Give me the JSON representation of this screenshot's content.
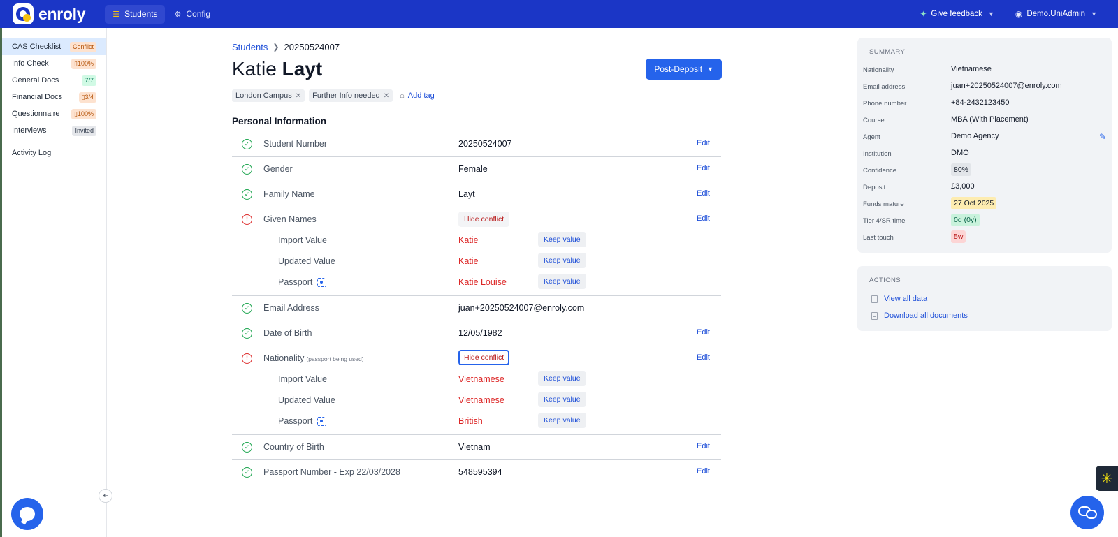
{
  "app": {
    "brand": "enroly",
    "nav": [
      {
        "label": "Students",
        "icon": "students-icon",
        "active": true
      },
      {
        "label": "Config",
        "icon": "gear-icon",
        "active": false
      }
    ],
    "feedback": "Give feedback",
    "user": "Demo.UniAdmin"
  },
  "sidebar": {
    "items": [
      {
        "label": "CAS Checklist",
        "badge": "Conflict"
      },
      {
        "label": "Info Check",
        "badge": "100%"
      },
      {
        "label": "General Docs",
        "badge": "7/7"
      },
      {
        "label": "Financial Docs",
        "badge": "3/4"
      },
      {
        "label": "Questionnaire",
        "badge": "100%"
      },
      {
        "label": "Interviews",
        "badge": "Invited"
      }
    ],
    "activity_log": "Activity Log"
  },
  "breadcrumb": {
    "parent": "Students",
    "current": "20250524007"
  },
  "student": {
    "first": "Katie",
    "last": "Layt"
  },
  "stage_button": "Post-Deposit",
  "tags": [
    "London Campus",
    "Further Info needed"
  ],
  "add_tag": "Add tag",
  "section_title": "Personal Information",
  "fields": {
    "student_number": {
      "label": "Student Number",
      "value": "20250524007",
      "edit": "Edit"
    },
    "gender": {
      "label": "Gender",
      "value": "Female",
      "edit": "Edit"
    },
    "family_name": {
      "label": "Family Name",
      "value": "Layt",
      "edit": "Edit"
    },
    "given_names": {
      "label": "Given Names",
      "button": "Hide conflict",
      "edit": "Edit",
      "sources": [
        {
          "label": "Import Value",
          "value": "Katie",
          "keep": "Keep value"
        },
        {
          "label": "Updated Value",
          "value": "Katie",
          "keep": "Keep value"
        },
        {
          "label": "Passport",
          "value": "Katie Louise",
          "keep": "Keep value"
        }
      ]
    },
    "email": {
      "label": "Email Address",
      "value": "juan+20250524007@enroly.com"
    },
    "dob": {
      "label": "Date of Birth",
      "value": "12/05/1982",
      "edit": "Edit"
    },
    "nationality": {
      "label": "Nationality",
      "note": "(passport being used)",
      "button": "Hide conflict",
      "edit": "Edit",
      "sources": [
        {
          "label": "Import Value",
          "value": "Vietnamese",
          "keep": "Keep value"
        },
        {
          "label": "Updated Value",
          "value": "Vietnamese",
          "keep": "Keep value"
        },
        {
          "label": "Passport",
          "value": "British",
          "keep": "Keep value"
        }
      ]
    },
    "country_of_birth": {
      "label": "Country of Birth",
      "value": "Vietnam",
      "edit": "Edit"
    },
    "passport_number": {
      "label": "Passport Number - Exp 22/03/2028",
      "value": "548595394",
      "edit": "Edit"
    }
  },
  "summary": {
    "title": "SUMMARY",
    "rows": [
      {
        "key": "Nationality",
        "value": "Vietnamese"
      },
      {
        "key": "Email address",
        "value": "juan+20250524007@enroly.com"
      },
      {
        "key": "Phone number",
        "value": "+84-2432123450"
      },
      {
        "key": "Course",
        "value": "MBA (With Placement)"
      },
      {
        "key": "Agent",
        "value": "Demo Agency"
      },
      {
        "key": "Institution",
        "value": "DMO"
      },
      {
        "key": "Confidence",
        "value": "80%"
      },
      {
        "key": "Deposit",
        "value": "£3,000"
      },
      {
        "key": "Funds mature",
        "value": "27 Oct 2025"
      },
      {
        "key": "Tier 4/SR time",
        "value": "0d (0y)"
      },
      {
        "key": "Last touch",
        "value": "5w"
      }
    ]
  },
  "actions": {
    "title": "ACTIONS",
    "items": [
      "View all data",
      "Download all documents"
    ]
  },
  "colors": {
    "brand": "#1b36c6",
    "primary": "#2563eb",
    "conflict": "#dc2626",
    "ok": "#16a34a"
  }
}
